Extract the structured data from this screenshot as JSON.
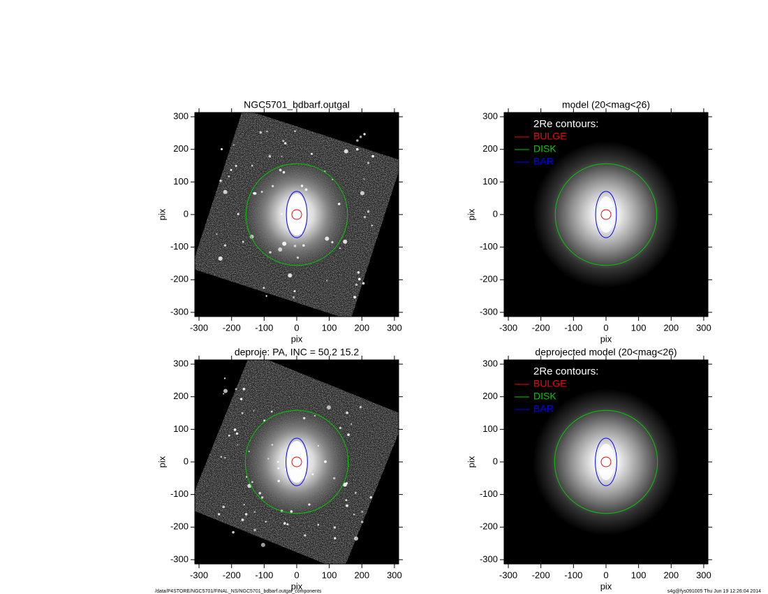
{
  "chart_data": [
    {
      "type": "image",
      "title": "NGC5701_bdbarf.outgal",
      "xlabel": "pix",
      "ylabel": "pix",
      "xlim": [
        -313,
        313
      ],
      "ylim": [
        -313,
        313
      ],
      "xticks": [
        -300,
        -200,
        -100,
        0,
        100,
        200,
        300
      ],
      "yticks": [
        -300,
        -200,
        -100,
        0,
        100,
        200,
        300
      ],
      "contours": [
        {
          "color": "#ff0000",
          "x": 0,
          "y": 0,
          "rx": 15,
          "ry": 15
        },
        {
          "color": "#00cc00",
          "x": 0,
          "y": 0,
          "rx": 156,
          "ry": 156
        },
        {
          "color": "#0000ff",
          "x": 0,
          "y": 0,
          "rx": 32,
          "ry": 71
        }
      ]
    },
    {
      "type": "model",
      "title": "model (20<mag<26)",
      "xlabel": "pix",
      "ylabel": "pix",
      "xlim": [
        -313,
        313
      ],
      "ylim": [
        -313,
        313
      ],
      "xticks": [
        -300,
        -200,
        -100,
        0,
        100,
        200,
        300
      ],
      "yticks": [
        -300,
        -200,
        -100,
        0,
        100,
        200,
        300
      ],
      "legend_title": "2Re contours:",
      "contours": [
        {
          "name": "BULGE",
          "color": "#ff0000",
          "x": 0,
          "y": 0,
          "rx": 15,
          "ry": 15
        },
        {
          "name": "DISK",
          "color": "#00cc00",
          "x": 0,
          "y": 0,
          "rx": 156,
          "ry": 156
        },
        {
          "name": "BAR",
          "color": "#0000ff",
          "x": 0,
          "y": 0,
          "rx": 32,
          "ry": 71
        }
      ]
    },
    {
      "type": "image",
      "title": "deproje: PA, INC =  50.2    15.2",
      "xlabel": "pix",
      "ylabel": "pix",
      "xlim": [
        -313,
        313
      ],
      "ylim": [
        -313,
        313
      ],
      "xticks": [
        -300,
        -200,
        -100,
        0,
        100,
        200,
        300
      ],
      "yticks": [
        -300,
        -200,
        -100,
        0,
        100,
        200,
        300
      ],
      "contours": [
        {
          "color": "#ff0000",
          "x": 0,
          "y": 0,
          "rx": 15,
          "ry": 15
        },
        {
          "color": "#00cc00",
          "x": 0,
          "y": 0,
          "rx": 158,
          "ry": 158
        },
        {
          "color": "#0000ff",
          "x": 0,
          "y": 0,
          "rx": 33,
          "ry": 73
        }
      ]
    },
    {
      "type": "model",
      "title": "deprojected model (20<mag<26)",
      "xlabel": "pix",
      "ylabel": "pix",
      "xlim": [
        -313,
        313
      ],
      "ylim": [
        -313,
        313
      ],
      "xticks": [
        -300,
        -200,
        -100,
        0,
        100,
        200,
        300
      ],
      "yticks": [
        -300,
        -200,
        -100,
        0,
        100,
        200,
        300
      ],
      "legend_title": "2Re contours:",
      "contours": [
        {
          "name": "BULGE",
          "color": "#ff0000",
          "x": 0,
          "y": 0,
          "rx": 15,
          "ry": 15
        },
        {
          "name": "DISK",
          "color": "#00cc00",
          "x": 0,
          "y": 0,
          "rx": 158,
          "ry": 158
        },
        {
          "name": "BAR",
          "color": "#0000ff",
          "x": 0,
          "y": 0,
          "rx": 33,
          "ry": 73
        }
      ]
    }
  ],
  "footer": {
    "left": "/data/P4STORE/NGC5701/FINAL_NS/NGC5701_bdbarf.outgal_components",
    "right": "s4g@fys091005  Thu Jun 19 12:26:04 2014"
  }
}
